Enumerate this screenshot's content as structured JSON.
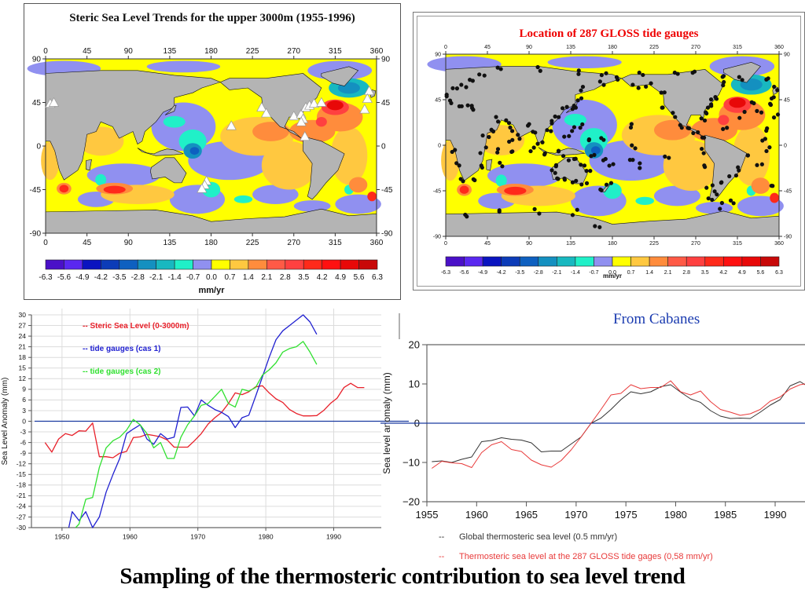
{
  "slide": {
    "title": "Sampling of the thermosteric contribution to sea level trend",
    "credit": "From Cabanes"
  },
  "colorbar": {
    "ticks": [
      "-6.3",
      "-5.6",
      "-4.9",
      "-4.2",
      "-3.5",
      "-2.8",
      "-2.1",
      "-1.4",
      "-0.7",
      "0.0",
      "0.7",
      "1.4",
      "2.1",
      "2.8",
      "3.5",
      "4.2",
      "4.9",
      "5.6",
      "6.3"
    ],
    "colors": [
      "#4a10c8",
      "#5a28f0",
      "#0a14c0",
      "#0c3cb8",
      "#0e60c0",
      "#1490c0",
      "#18b8c0",
      "#20f0c8",
      "#9090f0",
      "#ffff00",
      "#ffc840",
      "#ff8c3c",
      "#ff5a46",
      "#ff4040",
      "#ff2a1a",
      "#ff1010",
      "#e80808",
      "#c80808"
    ],
    "unit": "mm/yr"
  },
  "chart_data": [
    {
      "type": "heatmap",
      "id": "steric-map",
      "title": "Steric Sea Level Trends for the upper 3000m (1955-1996)",
      "xlabel": "",
      "ylabel": "",
      "xticks": [
        "0",
        "45",
        "90",
        "135",
        "180",
        "225",
        "270",
        "315",
        "360"
      ],
      "yticks": [
        "90",
        "45",
        "0",
        "-45",
        "-90"
      ],
      "xlim": [
        0,
        360
      ],
      "ylim": [
        -90,
        90
      ],
      "colorbar_unit": "mm/yr",
      "colorbar_range": [
        -6.3,
        6.3
      ],
      "markers": "white triangles",
      "marker_positions": [
        [
          5,
          44
        ],
        [
          9,
          45
        ],
        [
          175,
          -36
        ],
        [
          173,
          -40
        ],
        [
          170,
          -44
        ],
        [
          202,
          21
        ],
        [
          235,
          40
        ],
        [
          240,
          34
        ],
        [
          270,
          31
        ],
        [
          278,
          33
        ],
        [
          280,
          28
        ],
        [
          278,
          25
        ],
        [
          282,
          10
        ],
        [
          283,
          40
        ],
        [
          287,
          42
        ],
        [
          292,
          44
        ],
        [
          300,
          45
        ],
        [
          352,
          57
        ],
        [
          350,
          49
        ],
        [
          347,
          38
        ]
      ]
    },
    {
      "type": "heatmap",
      "id": "gloss-map",
      "title": "Location of 287 GLOSS tide gauges",
      "xticks": [
        "0",
        "45",
        "90",
        "135",
        "180",
        "225",
        "270",
        "315",
        "360"
      ],
      "yticks": [
        "90",
        "45",
        "0",
        "-45",
        "-90"
      ],
      "xlim": [
        0,
        360
      ],
      "ylim": [
        -90,
        90
      ],
      "colorbar_unit": "mm/yr",
      "colorbar_range": [
        -6.3,
        6.3
      ],
      "markers": "black dots (287 GLOSS tide gauges)",
      "marker_count": 287
    },
    {
      "type": "line",
      "id": "left-line-chart",
      "title": "",
      "xlabel": "",
      "ylabel": "Sea Level Anomaly (mm)",
      "xlim": [
        1945.5,
        1997
      ],
      "ylim": [
        -30,
        30
      ],
      "xticks": [
        "1950",
        "1960",
        "1970",
        "1980",
        "1990"
      ],
      "yticks": [
        "30",
        "27",
        "24",
        "21",
        "18",
        "15",
        "12",
        "9",
        "6",
        "3",
        "0",
        "-3",
        "-6",
        "-9",
        "-12",
        "-15",
        "-18",
        "-21",
        "-24",
        "-27",
        "-30"
      ],
      "grid": true,
      "legend_position": "top-left",
      "series": [
        {
          "name": "-- Steric Sea Level (0-3000m)",
          "color": "#e8202a",
          "x": [
            1947.5,
            1948.5,
            1949.5,
            1950.5,
            1951.5,
            1952.5,
            1953.5,
            1954.5,
            1955.5,
            1956.5,
            1957.5,
            1958.5,
            1959.5,
            1960.5,
            1961.5,
            1962.5,
            1963.5,
            1964.5,
            1965.5,
            1966.5,
            1967.5,
            1968.5,
            1969.5,
            1970.5,
            1971.5,
            1972.5,
            1973.5,
            1974.5,
            1975.5,
            1976.5,
            1977.5,
            1978.5,
            1979.5,
            1980.5,
            1981.5,
            1982.5,
            1983.5,
            1984.5,
            1985.5,
            1986.5,
            1987.5,
            1988.5,
            1989.5,
            1990.5,
            1991.5,
            1992.5,
            1993.5,
            1994.5
          ],
          "y": [
            -6,
            -8.7,
            -5,
            -3.5,
            -4,
            -2.7,
            -2.8,
            -0.5,
            -10,
            -10,
            -10.3,
            -9,
            -8.5,
            -4.6,
            -4.4,
            -3.7,
            -4,
            -4.4,
            -5.3,
            -7.3,
            -7.3,
            -7.3,
            -5.5,
            -3.5,
            -0.8,
            1,
            2.5,
            5,
            8,
            7.5,
            8.3,
            9.7,
            10,
            8,
            6.3,
            5.3,
            3.3,
            2.2,
            1.5,
            1.5,
            1.6,
            3,
            5,
            6.5,
            9.5,
            10.7,
            9.5,
            9.5
          ]
        },
        {
          "name": "-- tide gauges (cas 1)",
          "color": "#2020d0",
          "x": [
            1951,
            1951.5,
            1952.5,
            1953.5,
            1954.5,
            1955.5,
            1956.5,
            1957.5,
            1958.5,
            1959.5,
            1960.5,
            1961.5,
            1962.5,
            1963.5,
            1964.5,
            1965.5,
            1966.5,
            1967.5,
            1968.5,
            1969.5,
            1970.5,
            1971.5,
            1972.5,
            1973.5,
            1974.5,
            1975.5,
            1976.5,
            1977.5,
            1978.5,
            1979.5,
            1980.5,
            1981.5,
            1982.5,
            1983.5,
            1984.5,
            1985.5,
            1986.5,
            1987.5
          ],
          "y": [
            -30,
            -25.5,
            -28,
            -25.5,
            -30,
            -27,
            -20,
            -15,
            -10.5,
            -3.5,
            -2.2,
            -1,
            -5,
            -6.5,
            -3.5,
            -5,
            -4.5,
            3.9,
            4,
            1.5,
            6,
            4.5,
            3.3,
            2.5,
            1.3,
            -1.8,
            1,
            1.7,
            7,
            12.5,
            18,
            23,
            25.5,
            27,
            28.5,
            30,
            28,
            24.5
          ]
        },
        {
          "name": "-- tide gauges (cas 2)",
          "color": "#30e030",
          "x": [
            1952,
            1952.5,
            1953.5,
            1954.5,
            1955.5,
            1956.5,
            1957.5,
            1958.5,
            1959.5,
            1960.5,
            1961.5,
            1962.5,
            1963.5,
            1964.5,
            1965.5,
            1966.5,
            1967.5,
            1968.5,
            1969.5,
            1970.5,
            1971.5,
            1972.5,
            1973.5,
            1974.5,
            1975.5,
            1976.5,
            1977.5,
            1978.5,
            1979.5,
            1980.5,
            1981.5,
            1982.5,
            1983.5,
            1984.5,
            1985.5,
            1986.5,
            1987.5
          ],
          "y": [
            -30,
            -29,
            -22,
            -21.5,
            -13,
            -7.5,
            -5.5,
            -4.5,
            -2.5,
            0.5,
            -1,
            -3.5,
            -7.5,
            -6,
            -10.5,
            -10.5,
            -4.5,
            -1,
            1.5,
            4.5,
            5,
            7,
            9,
            5,
            4,
            9,
            8.5,
            9.5,
            13,
            14.5,
            16.5,
            19.5,
            20.5,
            21,
            22.5,
            19.5,
            16
          ]
        }
      ],
      "reference_line": {
        "y": 0,
        "color": "#1a3aa0"
      }
    },
    {
      "type": "line",
      "id": "right-line-chart",
      "title": "",
      "xlabel": "",
      "ylabel": "Sea level anomaly (mm)",
      "xlim": [
        1955,
        1993
      ],
      "ylim": [
        -20,
        20
      ],
      "xticks": [
        "1955",
        "1960",
        "1965",
        "1970",
        "1975",
        "1980",
        "1985",
        "1990"
      ],
      "yticks": [
        "20",
        "10",
        "0",
        "−10",
        "−20"
      ],
      "grid": false,
      "legend_position": "bottom",
      "series": [
        {
          "name": "Global thermosteric sea level  (0.5 mm/yr)",
          "legend_marker": "--",
          "color": "#333333",
          "x": [
            1955.5,
            1956.5,
            1957.5,
            1958.5,
            1959.5,
            1960.5,
            1961.5,
            1962.5,
            1963.5,
            1964.5,
            1965.5,
            1966.5,
            1967.5,
            1968.5,
            1969.5,
            1970.5,
            1971.5,
            1972.5,
            1973.5,
            1974.5,
            1975.5,
            1976.5,
            1977.5,
            1978.5,
            1979.5,
            1980.5,
            1981.5,
            1982.5,
            1983.5,
            1984.5,
            1985.5,
            1986.5,
            1987.5,
            1988.5,
            1989.5,
            1990.5,
            1991.5,
            1992.5,
            1993
          ],
          "y": [
            -9.8,
            -9.6,
            -10,
            -9.2,
            -8.6,
            -4.7,
            -4.4,
            -3.7,
            -4.1,
            -4.3,
            -5,
            -7.3,
            -7.1,
            -7.1,
            -5.3,
            -3.5,
            0,
            1.3,
            3.5,
            6,
            8,
            7.5,
            8,
            9.3,
            9.8,
            7.9,
            6.2,
            5.3,
            3.2,
            1.8,
            1.2,
            1.3,
            1.2,
            2.8,
            4.6,
            6,
            9.5,
            10.6,
            9.8
          ]
        },
        {
          "name": "Thermosteric sea level at the 287 GLOSS tide gages (0,58 mm/yr)",
          "legend_marker": "--",
          "color": "#e83a3a",
          "x": [
            1955.5,
            1956.5,
            1957.5,
            1958.5,
            1959.5,
            1960.5,
            1961.5,
            1962.5,
            1963.5,
            1964.5,
            1965.5,
            1966.5,
            1967.5,
            1968.5,
            1969.5,
            1970.5,
            1971.5,
            1972.5,
            1973.5,
            1974.5,
            1975.5,
            1976.5,
            1977.5,
            1978.5,
            1979.5,
            1980.5,
            1981.5,
            1982.5,
            1983.5,
            1984.5,
            1985.5,
            1986.5,
            1987.5,
            1988.5,
            1989.5,
            1990.5,
            1991.5,
            1992.5,
            1993
          ],
          "y": [
            -11.5,
            -9.7,
            -10.1,
            -10.3,
            -11.3,
            -7.5,
            -5.5,
            -4.7,
            -6.7,
            -7.2,
            -9.4,
            -10.6,
            -11.2,
            -9.5,
            -6.8,
            -3.5,
            0,
            3.5,
            7.2,
            7.6,
            9.8,
            8.8,
            9.1,
            9.1,
            10.8,
            8,
            7.2,
            8.2,
            5.5,
            3.5,
            2.8,
            2,
            2.4,
            3.5,
            5.6,
            6.7,
            8.7,
            9.8,
            10
          ]
        }
      ],
      "reference_line": {
        "y": 0,
        "color": "#1a3aa0"
      }
    }
  ]
}
